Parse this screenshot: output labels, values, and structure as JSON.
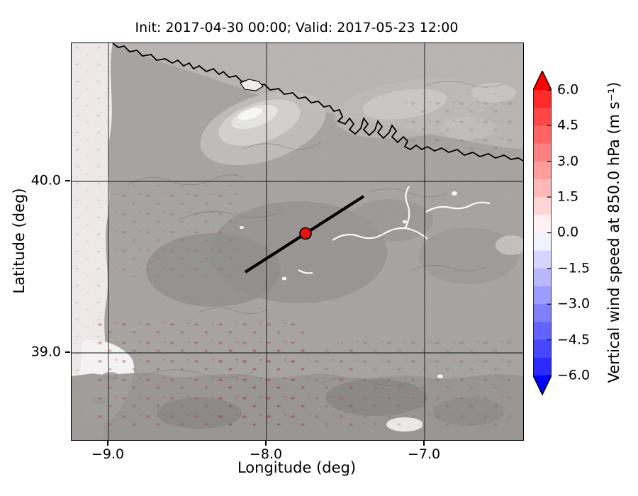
{
  "figure": {
    "title": "Init: 2017-04-30 00:00; Valid: 2017-05-23 12:00",
    "xlabel": "Longitude (deg)",
    "ylabel": "Latitude (deg)"
  },
  "axes": {
    "x_tick_labels": [
      "−9.0",
      "−8.0",
      "−7.0"
    ],
    "y_tick_labels": [
      "40.0",
      "39.0"
    ]
  },
  "colorbar": {
    "label": "Vertical wind speed at 850.0 hPa (m s⁻¹)",
    "tick_labels": [
      "6.0",
      "4.5",
      "3.0",
      "1.5",
      "0.0",
      "−1.5",
      "−3.0",
      "−4.5",
      "−6.0"
    ],
    "arrow_top_color": "#ff0000",
    "arrow_bottom_color": "#0000ff",
    "band_colors": [
      "#ff2b2b",
      "#ff4747",
      "#ff6363",
      "#ff8080",
      "#ff9c9c",
      "#ffb8b8",
      "#ffd5d5",
      "#fff1f1",
      "#f1f1ff",
      "#d5d5ff",
      "#b8b8ff",
      "#9c9cff",
      "#8080ff",
      "#6363ff",
      "#4747ff",
      "#2b2bff"
    ]
  },
  "overlay": {
    "marker_color": "#e8120e",
    "cross_section_color": "#000000"
  },
  "chart_data": {
    "type": "heatmap",
    "title": "Init: 2017-04-30 00:00; Valid: 2017-05-23 12:00",
    "xlabel": "Longitude (deg)",
    "ylabel": "Latitude (deg)",
    "xlim": [
      -9.25,
      -6.4
    ],
    "ylim": [
      38.47,
      40.81
    ],
    "x_ticks": [
      -9.0,
      -8.0,
      -7.0
    ],
    "y_ticks": [
      39.0,
      40.0
    ],
    "grid": true,
    "colorbar": {
      "label": "Vertical wind speed at 850.0 hPa (m s⁻¹)",
      "quantity": "Vertical wind speed",
      "level": "850.0 hPa",
      "units": "m s⁻¹",
      "ticks": [
        6.0,
        4.5,
        3.0,
        1.5,
        0.0,
        -1.5,
        -3.0,
        -4.5,
        -6.0
      ],
      "vmin": -6.0,
      "vmax": 6.0,
      "band_step": 0.75,
      "extend": "both",
      "colormap": "blue-white-red"
    },
    "overlays": {
      "cross_section_line": {
        "lon_start": -8.13,
        "lat_start": 39.47,
        "lon_end": -7.39,
        "lat_end": 39.91
      },
      "marker": {
        "lon": -7.75,
        "lat": 39.69
      }
    },
    "field_summary": "Vertical wind speed mostly near 0 m s⁻¹ over the whole domain (gray hillshaded terrain dominates); weak red updraft speckle/wave patterns scattered mainly southwest and northeast; black coastline contour crossing the northern part of the map; light (near-white) Atlantic strip along the western edge"
  }
}
